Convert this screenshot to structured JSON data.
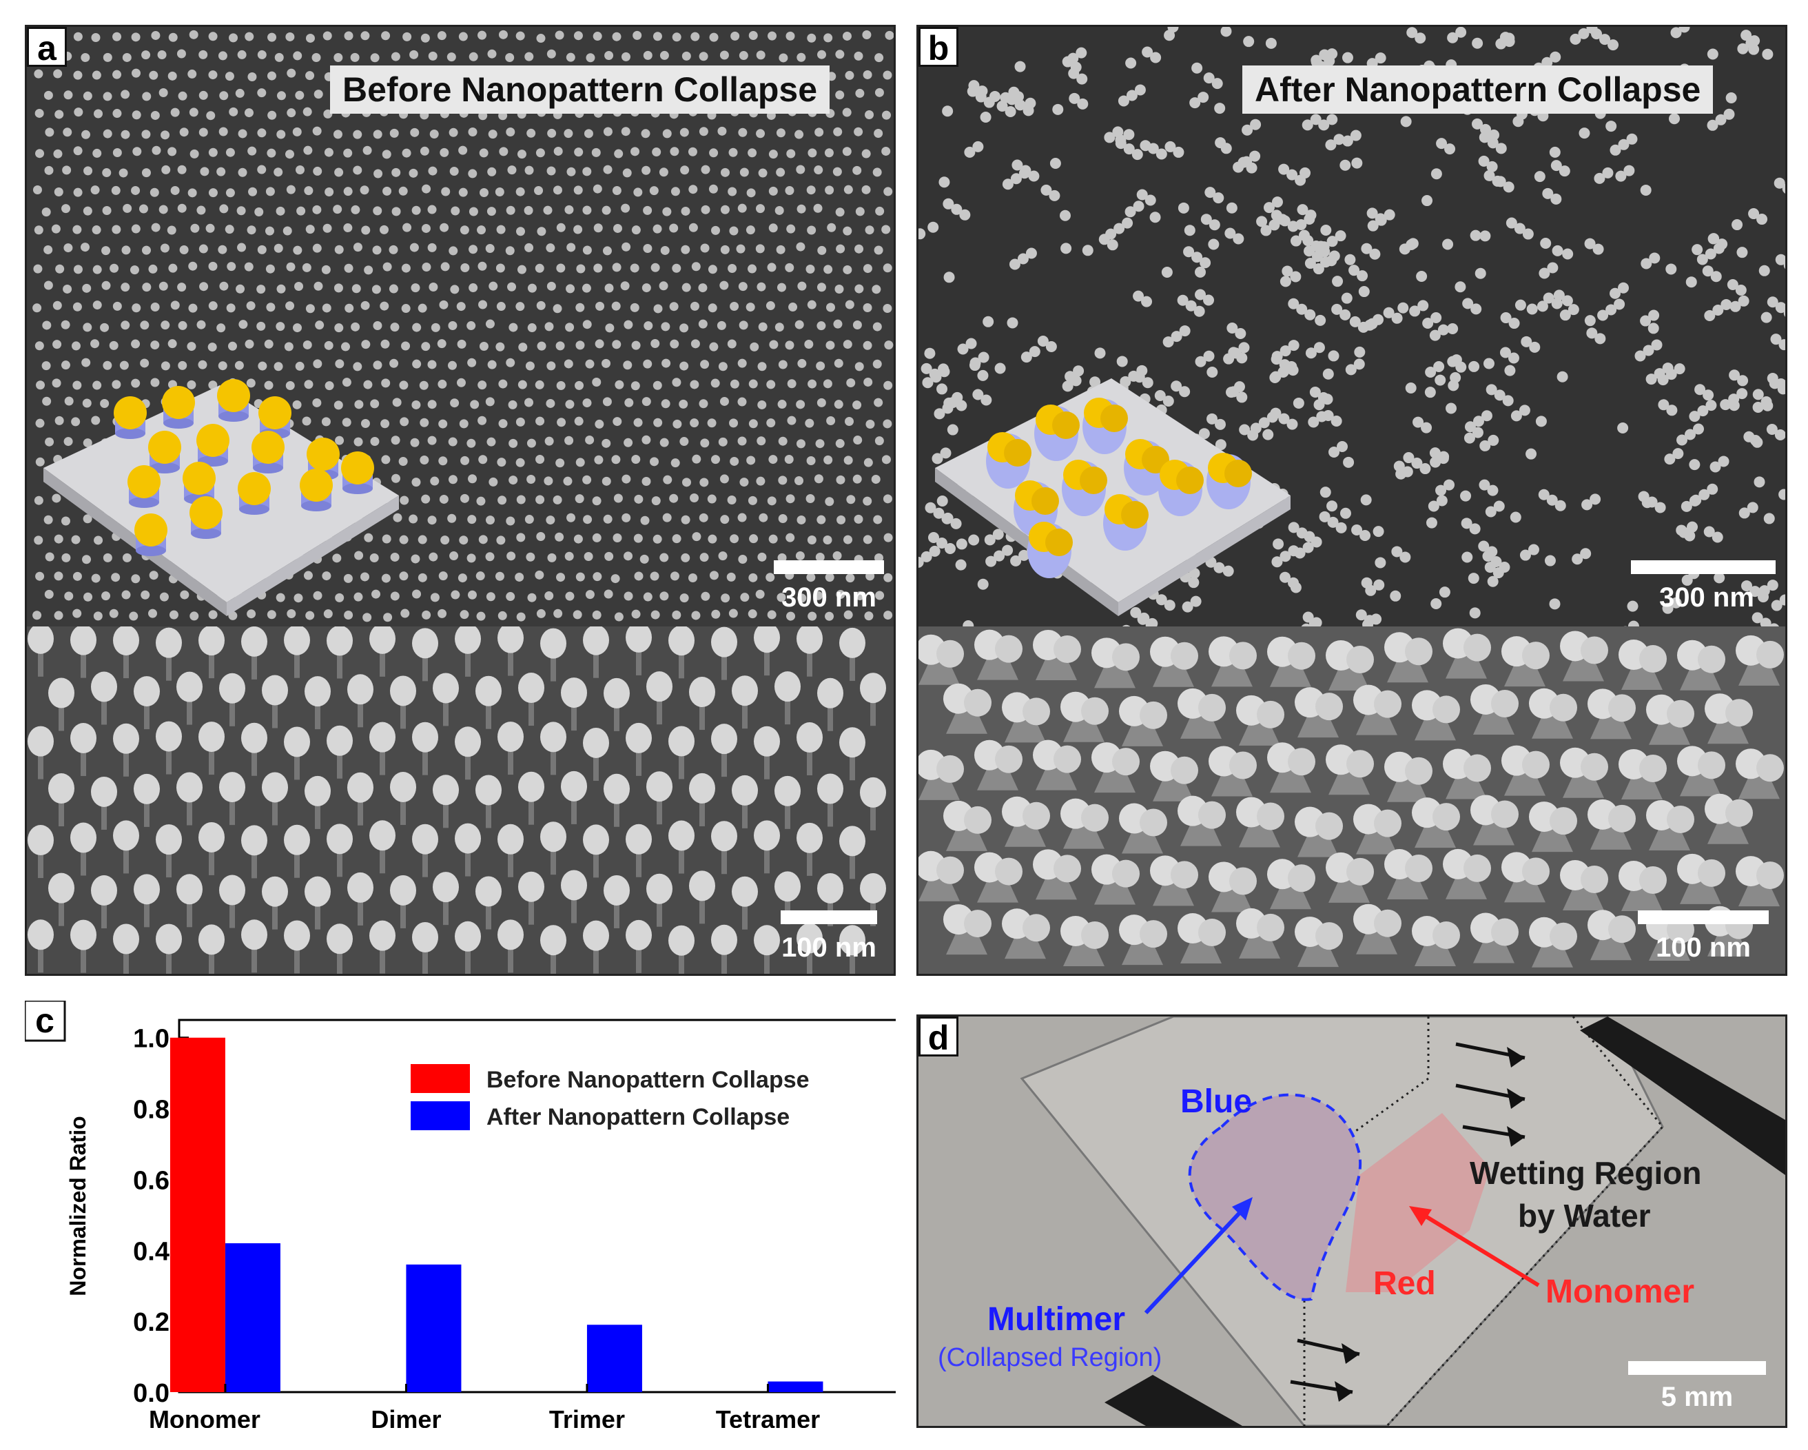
{
  "panel_a": {
    "label": "a",
    "title": "Before Nanopattern Collapse",
    "top_scale": "300 nm",
    "bottom_scale": "100 nm"
  },
  "panel_b": {
    "label": "b",
    "title": "After Nanopattern Collapse",
    "top_scale": "300 nm",
    "bottom_scale": "100 nm"
  },
  "panel_c": {
    "label": "c"
  },
  "panel_d": {
    "label": "d",
    "blue_label": "Blue",
    "red_label": "Red",
    "wetting_line1": "Wetting Region",
    "wetting_line2": "by Water",
    "multimer_label": "Multimer",
    "collapsed_label": "(Collapsed Region)",
    "monomer_label": "Monomer",
    "scale": "5 mm"
  },
  "colors": {
    "before": "#ff0000",
    "after": "#0000ff",
    "sem_background": "#2b2b2b",
    "gold": "#f5c400"
  },
  "chart_data": {
    "type": "bar",
    "ylabel": "Normalized Ratio",
    "xlabel": "",
    "categories": [
      "Monomer",
      "Dimer",
      "Trimer",
      "Tetramer"
    ],
    "ylim": [
      0.0,
      1.05
    ],
    "yticks": [
      "0.0",
      "0.2",
      "0.4",
      "0.6",
      "0.8",
      "1.0"
    ],
    "series": [
      {
        "name": "Before Nanopattern Collapse",
        "color": "#ff0000",
        "values": [
          1.0,
          0.0,
          0.0,
          0.0
        ]
      },
      {
        "name": "After Nanopattern Collapse",
        "color": "#0000ff",
        "values": [
          0.42,
          0.36,
          0.19,
          0.03
        ]
      }
    ],
    "legend": "top-right",
    "grid": false
  }
}
